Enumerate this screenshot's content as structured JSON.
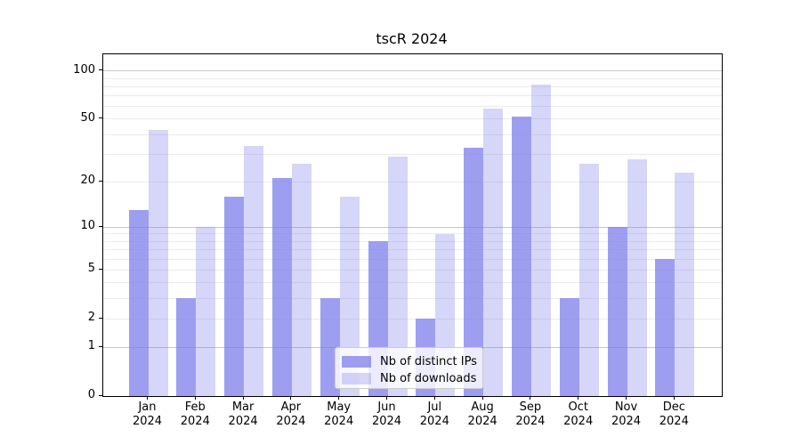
{
  "title": "tscR 2024",
  "chart_data": {
    "type": "bar",
    "categories": [
      "Jan",
      "Feb",
      "Mar",
      "Apr",
      "May",
      "Jun",
      "Jul",
      "Aug",
      "Sep",
      "Oct",
      "Nov",
      "Dec"
    ],
    "category_year": "2024",
    "series": [
      {
        "name": "Nb of distinct IPs",
        "color": "rgba(120,120,235,0.72)",
        "values": [
          13,
          3,
          16,
          21,
          3,
          8,
          2,
          33,
          52,
          3,
          10,
          6
        ]
      },
      {
        "name": "Nb of downloads",
        "color": "rgba(120,120,235,0.30)",
        "values": [
          43,
          10,
          34,
          26,
          16,
          29,
          9,
          58,
          82,
          26,
          28,
          23
        ]
      }
    ],
    "title": "tscR 2024",
    "xlabel": "",
    "ylabel": "",
    "yscale": "log1p",
    "ylim": [
      0,
      127
    ],
    "ytick_labels": [
      0,
      1,
      2,
      5,
      10,
      20,
      50,
      100
    ],
    "major_gridlines": [
      1,
      10,
      100
    ],
    "minor_gridlines": [
      2,
      3,
      4,
      5,
      6,
      7,
      8,
      9,
      20,
      30,
      40,
      50,
      60,
      70,
      80,
      90
    ],
    "grid": "on",
    "legend_position": "lower center"
  }
}
